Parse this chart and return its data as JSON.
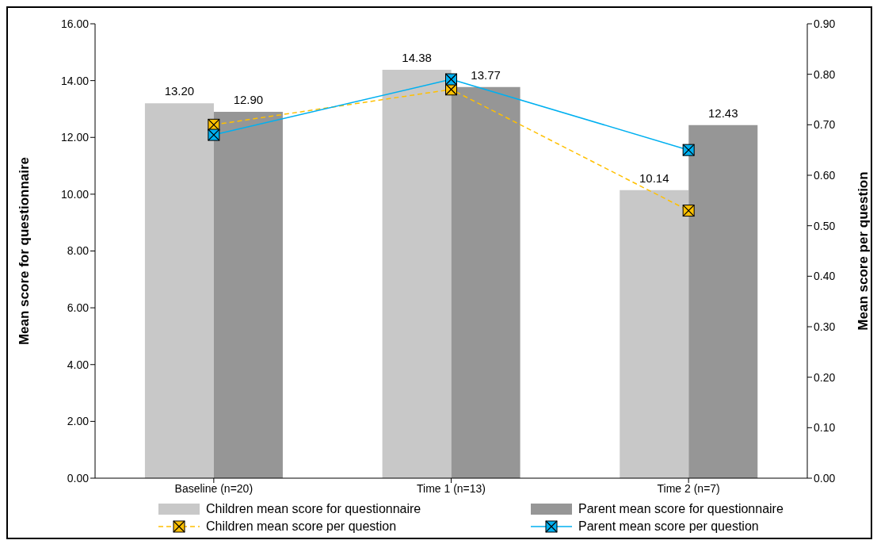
{
  "chart_data": {
    "type": "bar",
    "categories": [
      "Baseline (n=20)",
      "Time 1 (n=13)",
      "Time 2 (n=7)"
    ],
    "ylabel": "Mean score for questionnaire",
    "y2label": "Mean score per question",
    "series": [
      {
        "name": "Children mean score for questionnaire",
        "color": "#c8c8c8",
        "values": [
          13.2,
          14.38,
          10.14
        ],
        "value_labels": [
          "13.20",
          "14.38",
          "10.14"
        ]
      },
      {
        "name": "Parent mean score for questionnaire",
        "color": "#969696",
        "values": [
          12.9,
          13.77,
          12.43
        ],
        "value_labels": [
          "12.90",
          "13.77",
          "12.43"
        ]
      },
      {
        "name": "Children mean score per question",
        "type": "line",
        "axis": "y2",
        "color": "#ffc000",
        "values": [
          0.7,
          0.77,
          0.53
        ],
        "marker": "square",
        "line_style": "dashed"
      },
      {
        "name": "Parent mean score per question",
        "type": "line",
        "axis": "y2",
        "color": "#00b0f0",
        "values": [
          0.68,
          0.79,
          0.65
        ],
        "marker": "square",
        "line_style": "solid"
      }
    ],
    "ylim": [
      0,
      16
    ],
    "yticks": [
      {
        "value": 0,
        "label": "0.00"
      },
      {
        "value": 2,
        "label": "2.00"
      },
      {
        "value": 4,
        "label": "4.00"
      },
      {
        "value": 6,
        "label": "6.00"
      },
      {
        "value": 8,
        "label": "8.00"
      },
      {
        "value": 10,
        "label": "10.00"
      },
      {
        "value": 12,
        "label": "12.00"
      },
      {
        "value": 14,
        "label": "14.00"
      },
      {
        "value": 16,
        "label": "16.00"
      }
    ],
    "y2lim": [
      0,
      0.9
    ],
    "y2ticks": [
      {
        "value": 0,
        "label": "0.00"
      },
      {
        "value": 0.1,
        "label": "0.10"
      },
      {
        "value": 0.2,
        "label": "0.20"
      },
      {
        "value": 0.3,
        "label": "0.30"
      },
      {
        "value": 0.4,
        "label": "0.40"
      },
      {
        "value": 0.5,
        "label": "0.50"
      },
      {
        "value": 0.6,
        "label": "0.60"
      },
      {
        "value": 0.7,
        "label": "0.70"
      },
      {
        "value": 0.8,
        "label": "0.80"
      },
      {
        "value": 0.9,
        "label": "0.90"
      }
    ],
    "grid": false,
    "legend": "bottom"
  }
}
